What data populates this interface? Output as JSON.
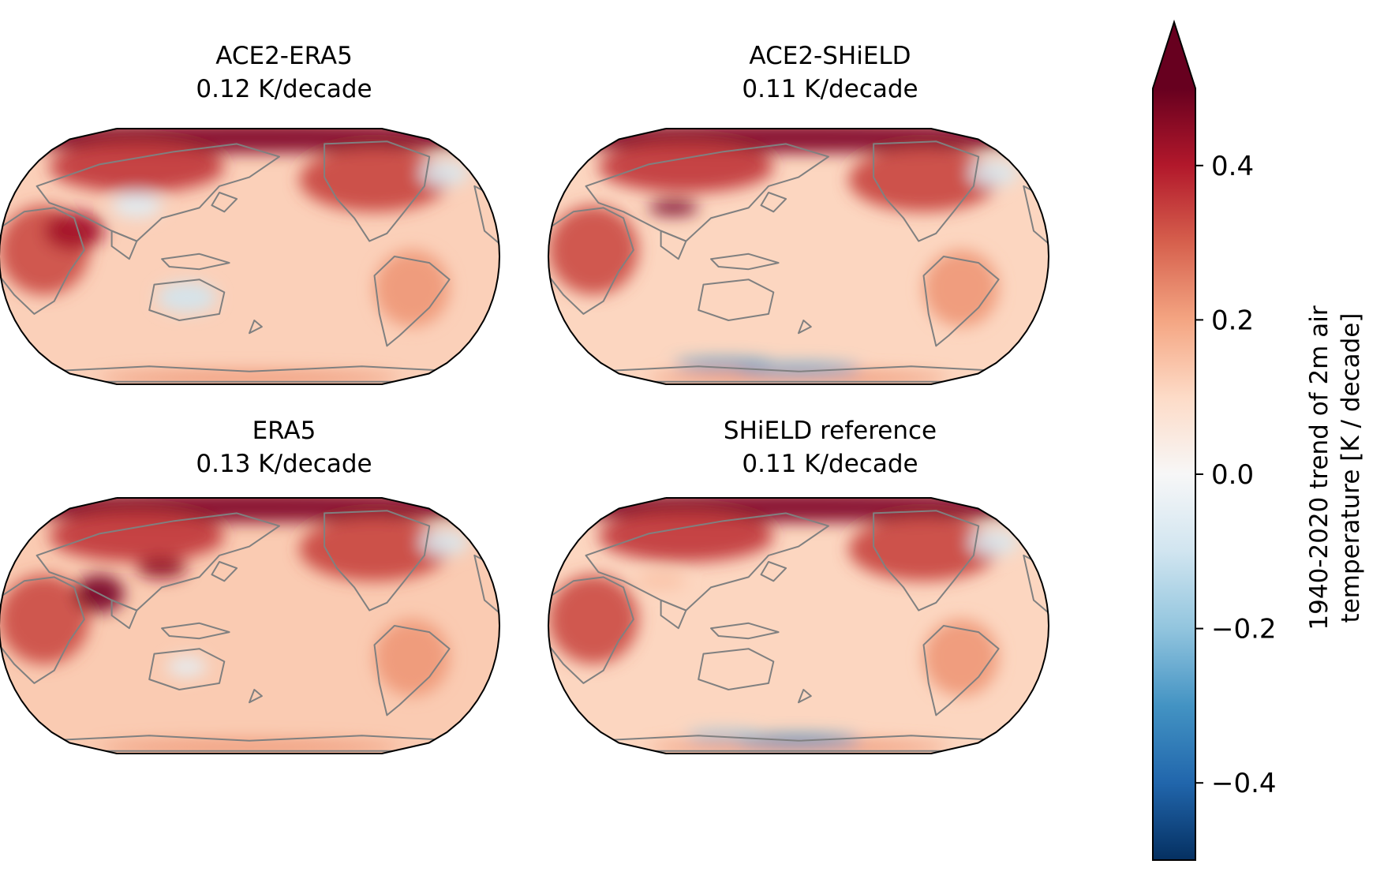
{
  "chart_data": {
    "type": "heatmap",
    "projection": "Robinson, Pacific-centered",
    "panels": [
      {
        "title": "ACE2-ERA5",
        "subtitle": "0.12 K/decade",
        "global_mean_trend": 0.12
      },
      {
        "title": "ACE2-SHiELD",
        "subtitle": "0.11 K/decade",
        "global_mean_trend": 0.11
      },
      {
        "title": "ERA5",
        "subtitle": "0.13 K/decade",
        "global_mean_trend": 0.13
      },
      {
        "title": "SHiELD reference",
        "subtitle": "0.11 K/decade",
        "global_mean_trend": 0.11
      }
    ],
    "colorbar": {
      "label_line1": "1940-2020 trend of 2m air",
      "label_line2": "temperature [K / decade]",
      "vmin": -0.5,
      "vmax": 0.5,
      "extend": "max",
      "colormap": "RdBu_r",
      "ticks": [
        -0.4,
        -0.2,
        0.0,
        0.2,
        0.4
      ],
      "tick_labels": [
        "−0.4",
        "−0.2",
        "0.0",
        "0.2",
        "0.4"
      ]
    },
    "colors": {
      "coastline": "#808080",
      "outline": "#000000",
      "warm_strong": "#67001f",
      "warm": "#d6604d",
      "neutral": "#f7f7f7",
      "cool": "#4393c3",
      "cool_strong": "#053061"
    }
  }
}
